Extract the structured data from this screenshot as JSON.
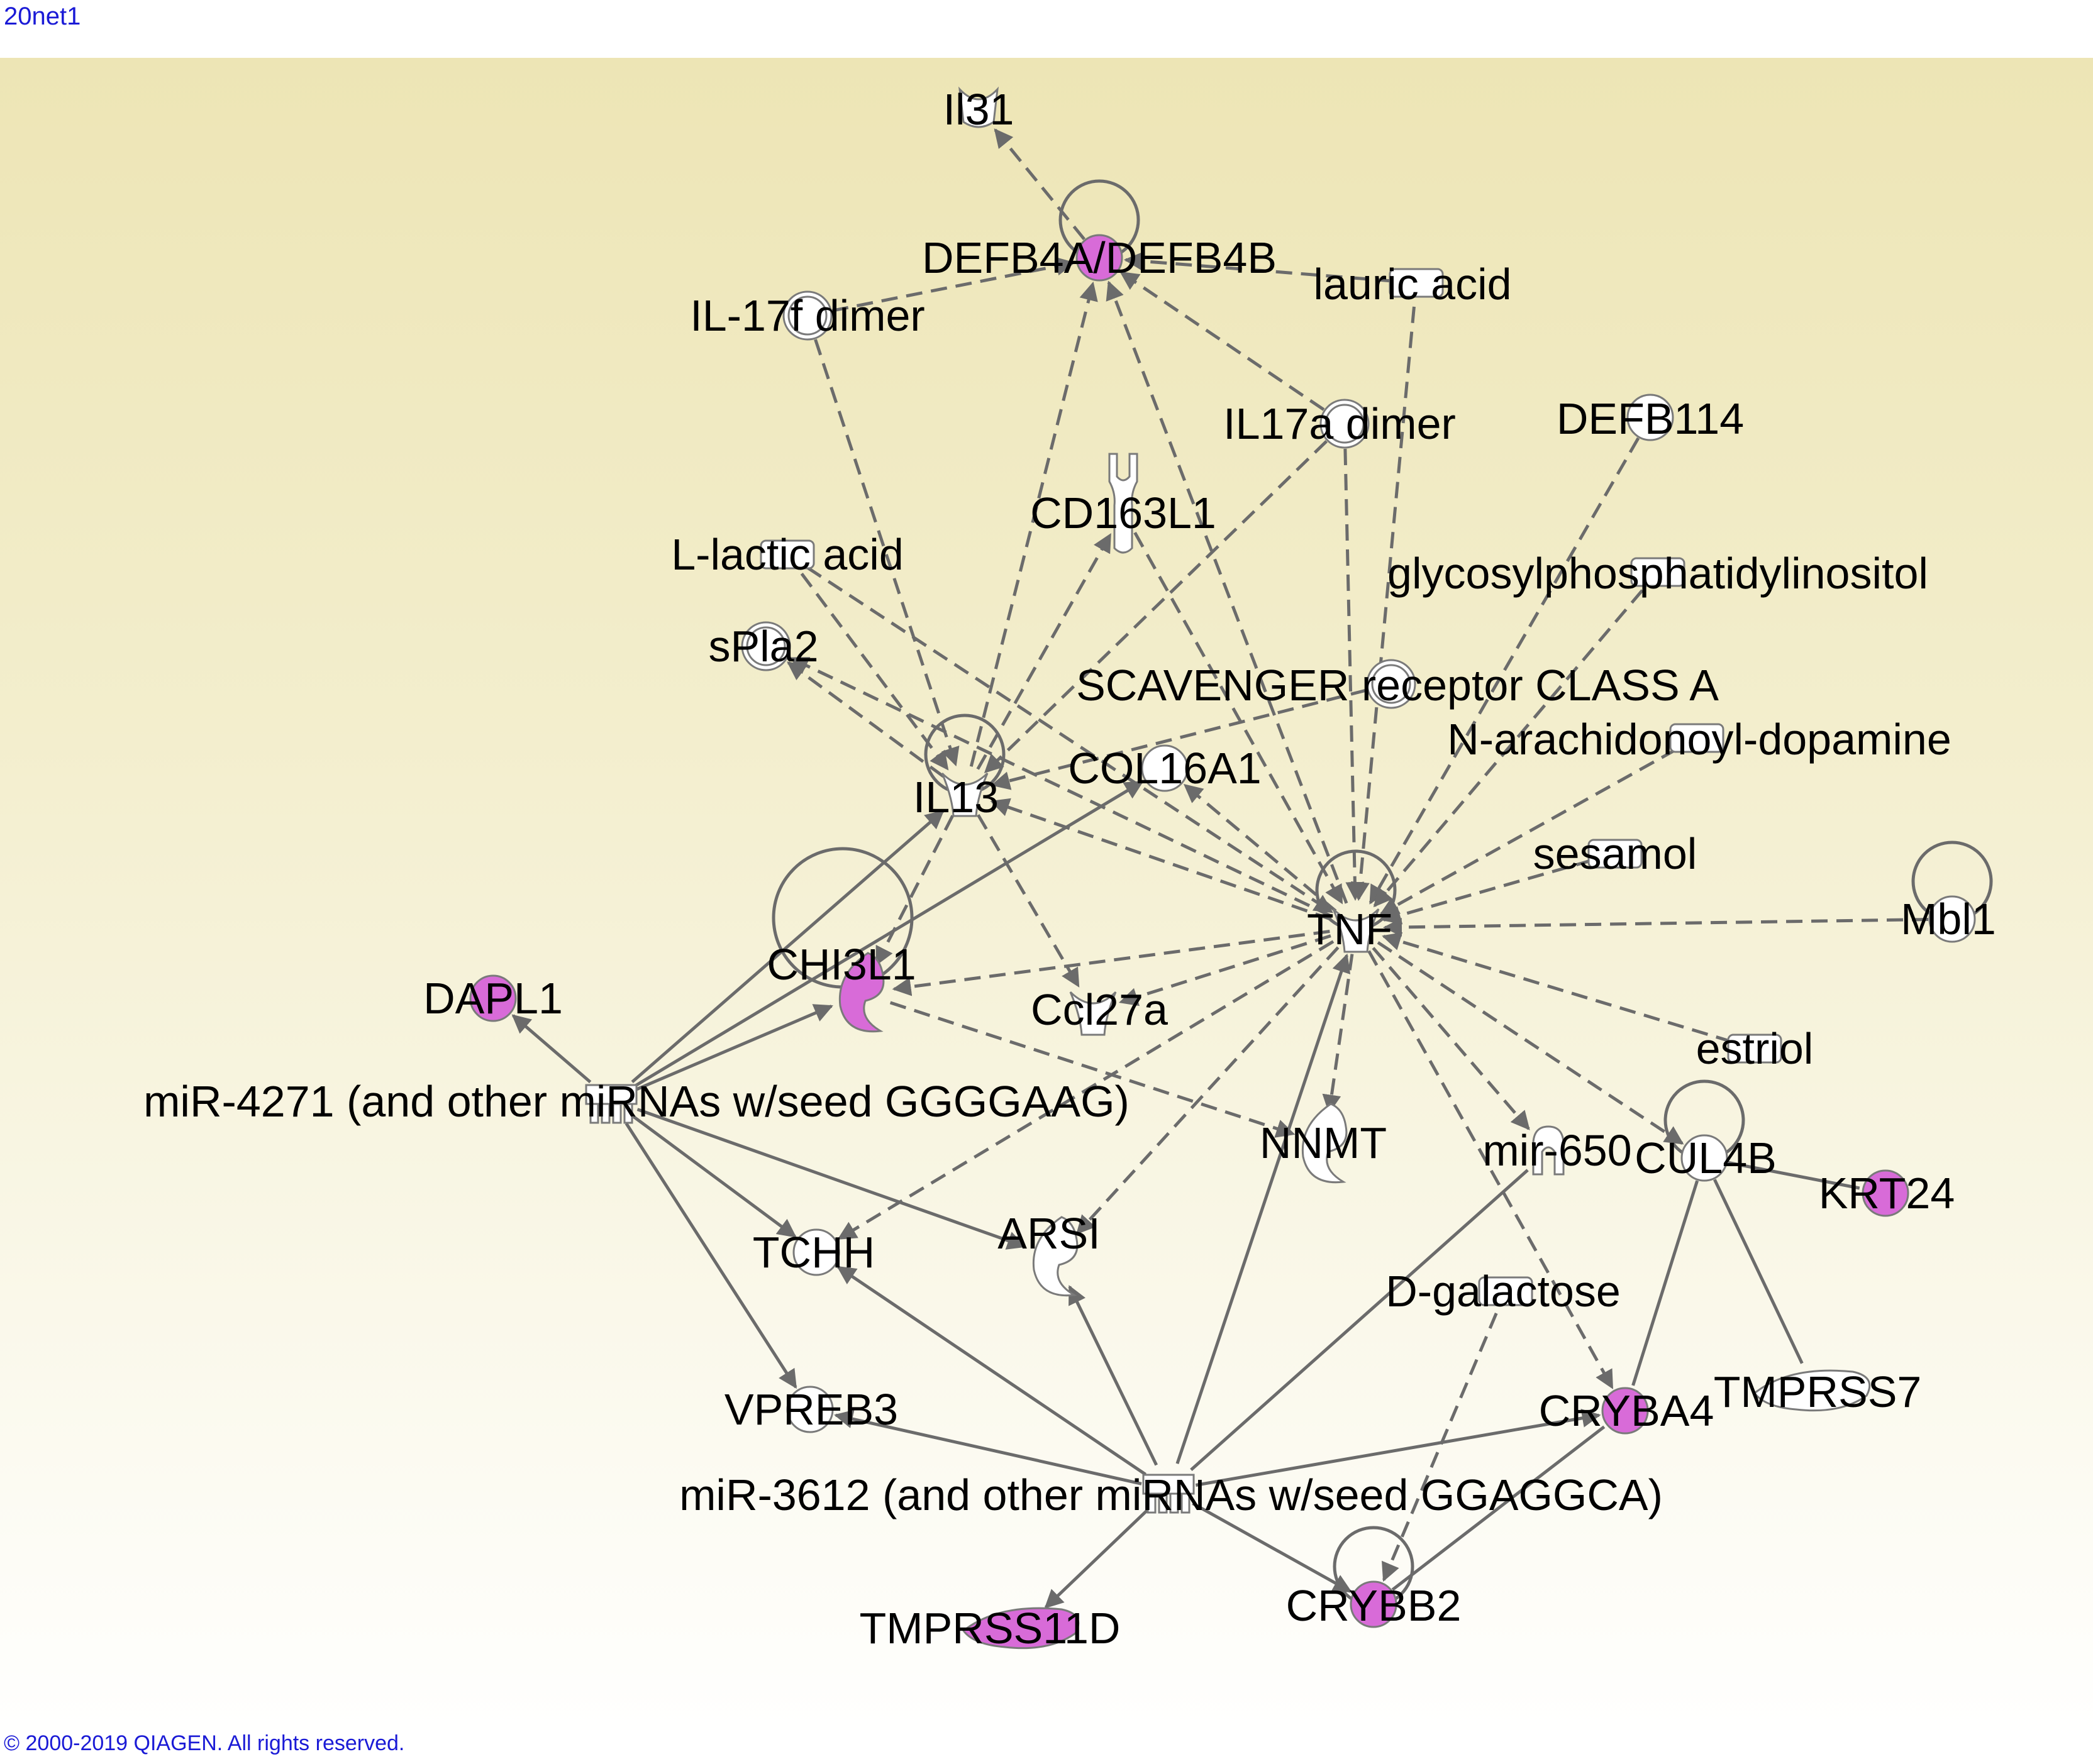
{
  "title": "20net1",
  "copyright": "© 2000-2019 QIAGEN. All rights reserved.",
  "colors": {
    "highlight": "#d86bd8",
    "node": "#ffffff",
    "edge": "#6b6b6b",
    "link": "#1a1ad6"
  },
  "nodes": [
    {
      "id": "il31",
      "label": "Il31",
      "shape": "receptor-icon",
      "highlighted": false
    },
    {
      "id": "defb4",
      "label": "DEFB4A/DEFB4B",
      "shape": "circle-icon",
      "highlighted": true
    },
    {
      "id": "lauric",
      "label": "lauric acid",
      "shape": "chemical-icon",
      "highlighted": false
    },
    {
      "id": "il17f",
      "label": "IL-17f dimer",
      "shape": "complex-icon",
      "highlighted": false
    },
    {
      "id": "il17a",
      "label": "IL17a dimer",
      "shape": "complex-icon",
      "highlighted": false
    },
    {
      "id": "defb114",
      "label": "DEFB114",
      "shape": "circle-icon",
      "highlighted": false
    },
    {
      "id": "cd163l1",
      "label": "CD163L1",
      "shape": "transmembrane-receptor-icon",
      "highlighted": false
    },
    {
      "id": "llactic",
      "label": "L-lactic acid",
      "shape": "chemical-icon",
      "highlighted": false
    },
    {
      "id": "gpi",
      "label": "glycosylphosphatidylinositol",
      "shape": "chemical-icon",
      "highlighted": false
    },
    {
      "id": "spla2",
      "label": "sPla2",
      "shape": "complex-icon",
      "highlighted": false
    },
    {
      "id": "scav",
      "label": "SCAVENGER receptor CLASS A",
      "shape": "complex-icon",
      "highlighted": false
    },
    {
      "id": "nada",
      "label": "N-arachidonoyl-dopamine",
      "shape": "chemical-icon",
      "highlighted": false
    },
    {
      "id": "il13",
      "label": "IL13",
      "shape": "cytokine-icon",
      "highlighted": false
    },
    {
      "id": "col16a1",
      "label": "COL16A1",
      "shape": "circle-icon",
      "highlighted": false
    },
    {
      "id": "sesamol",
      "label": "sesamol",
      "shape": "chemical-icon",
      "highlighted": false
    },
    {
      "id": "mbl1",
      "label": "Mbl1",
      "shape": "circle-icon",
      "highlighted": false
    },
    {
      "id": "tnf",
      "label": "TNF",
      "shape": "cytokine-icon",
      "highlighted": false
    },
    {
      "id": "chi3l1",
      "label": "CHI3L1",
      "shape": "enzyme-icon",
      "highlighted": true
    },
    {
      "id": "ccl27a",
      "label": "Ccl27a",
      "shape": "cytokine-icon",
      "highlighted": false
    },
    {
      "id": "dapl1",
      "label": "DAPL1",
      "shape": "circle-icon",
      "highlighted": true
    },
    {
      "id": "estriol",
      "label": "estriol",
      "shape": "chemical-icon",
      "highlighted": false
    },
    {
      "id": "mir4271",
      "label": "miR-4271 (and other miRNAs w/seed GGGGAAG)",
      "shape": "mirna-icon",
      "highlighted": false
    },
    {
      "id": "nnmt",
      "label": "NNMT",
      "shape": "enzyme-icon",
      "highlighted": false
    },
    {
      "id": "mir650",
      "label": "mir-650",
      "shape": "microrna-icon",
      "highlighted": false
    },
    {
      "id": "cul4b",
      "label": "CUL4B",
      "shape": "circle-icon",
      "highlighted": false
    },
    {
      "id": "krt24",
      "label": "KRT24",
      "shape": "circle-icon",
      "highlighted": true
    },
    {
      "id": "tchh",
      "label": "TCHH",
      "shape": "circle-icon",
      "highlighted": false
    },
    {
      "id": "arsi",
      "label": "ARSI",
      "shape": "enzyme-icon",
      "highlighted": false
    },
    {
      "id": "dgal",
      "label": "D-galactose",
      "shape": "chemical-icon",
      "highlighted": false
    },
    {
      "id": "tmprss7",
      "label": "TMPRSS7",
      "shape": "peptidase-icon",
      "highlighted": false
    },
    {
      "id": "vpreb3",
      "label": "VPREB3",
      "shape": "circle-icon",
      "highlighted": false
    },
    {
      "id": "cryba4",
      "label": "CRYBA4",
      "shape": "circle-icon",
      "highlighted": true
    },
    {
      "id": "mir3612",
      "label": "miR-3612 (and other miRNAs w/seed GGAGGCA)",
      "shape": "mirna-icon",
      "highlighted": false
    },
    {
      "id": "crybb2",
      "label": "CRYBB2",
      "shape": "circle-icon",
      "highlighted": true
    },
    {
      "id": "tmprss11d",
      "label": "TMPRSS11D",
      "shape": "peptidase-icon",
      "highlighted": true
    }
  ],
  "edges": [
    {
      "from": "defb4",
      "to": "il31",
      "style": "dashed",
      "arrow": true
    },
    {
      "from": "defb4",
      "to": "defb4",
      "style": "solid",
      "arrow": false
    },
    {
      "from": "il17f",
      "to": "defb4",
      "style": "dashed",
      "arrow": true
    },
    {
      "from": "lauric",
      "to": "defb4",
      "style": "dashed",
      "arrow": true
    },
    {
      "from": "il17a",
      "to": "defb4",
      "style": "dashed",
      "arrow": true
    },
    {
      "from": "il13",
      "to": "defb4",
      "style": "dashed",
      "arrow": true
    },
    {
      "from": "tnf",
      "to": "defb4",
      "style": "dashed",
      "arrow": true
    },
    {
      "from": "il17f",
      "to": "il13",
      "style": "dashed",
      "arrow": true
    },
    {
      "from": "il17a",
      "to": "il13",
      "style": "dashed",
      "arrow": true
    },
    {
      "from": "il13",
      "to": "cd163l1",
      "style": "dashed",
      "arrow": true
    },
    {
      "from": "llactic",
      "to": "il13",
      "style": "dashed",
      "arrow": true
    },
    {
      "from": "llactic",
      "to": "tnf",
      "style": "dashed",
      "arrow": true
    },
    {
      "from": "il13",
      "to": "spla2",
      "style": "dashed",
      "arrow": true
    },
    {
      "from": "tnf",
      "to": "spla2",
      "style": "dashed",
      "arrow": true
    },
    {
      "from": "il13",
      "to": "il13",
      "style": "solid",
      "arrow": false
    },
    {
      "from": "scav",
      "to": "il13",
      "style": "dashed",
      "arrow": true
    },
    {
      "from": "tnf",
      "to": "il13",
      "style": "dashed",
      "arrow": true
    },
    {
      "from": "il13",
      "to": "chi3l1",
      "style": "dashed",
      "arrow": true
    },
    {
      "from": "il13",
      "to": "ccl27a",
      "style": "dashed",
      "arrow": true
    },
    {
      "from": "tnf",
      "to": "col16a1",
      "style": "dashed",
      "arrow": true
    },
    {
      "from": "cd163l1",
      "to": "tnf",
      "style": "dashed",
      "arrow": true
    },
    {
      "from": "lauric",
      "to": "tnf",
      "style": "dashed",
      "arrow": true
    },
    {
      "from": "il17a",
      "to": "tnf",
      "style": "dashed",
      "arrow": true
    },
    {
      "from": "defb114",
      "to": "tnf",
      "style": "dashed",
      "arrow": true
    },
    {
      "from": "gpi",
      "to": "tnf",
      "style": "dashed",
      "arrow": true
    },
    {
      "from": "nada",
      "to": "tnf",
      "style": "dashed",
      "arrow": true
    },
    {
      "from": "sesamol",
      "to": "tnf",
      "style": "dashed",
      "arrow": true
    },
    {
      "from": "mbl1",
      "to": "tnf",
      "style": "dashed",
      "arrow": true
    },
    {
      "from": "mbl1",
      "to": "mbl1",
      "style": "solid",
      "arrow": false
    },
    {
      "from": "estriol",
      "to": "tnf",
      "style": "dashed",
      "arrow": true
    },
    {
      "from": "tnf",
      "to": "tnf",
      "style": "solid",
      "arrow": false
    },
    {
      "from": "tnf",
      "to": "chi3l1",
      "style": "dashed",
      "arrow": true
    },
    {
      "from": "tnf",
      "to": "ccl27a",
      "style": "dashed",
      "arrow": true
    },
    {
      "from": "tnf",
      "to": "nnmt",
      "style": "dashed",
      "arrow": true
    },
    {
      "from": "tnf",
      "to": "mir650",
      "style": "dashed",
      "arrow": true
    },
    {
      "from": "tnf",
      "to": "cul4b",
      "style": "dashed",
      "arrow": true
    },
    {
      "from": "tnf",
      "to": "cryba4",
      "style": "dashed",
      "arrow": true
    },
    {
      "from": "tnf",
      "to": "arsi",
      "style": "dashed",
      "arrow": true
    },
    {
      "from": "tnf",
      "to": "tchh",
      "style": "dashed",
      "arrow": true
    },
    {
      "from": "chi3l1",
      "to": "chi3l1",
      "style": "solid",
      "arrow": false
    },
    {
      "from": "chi3l1",
      "to": "nnmt",
      "style": "dashed",
      "arrow": true
    },
    {
      "from": "mir4271",
      "to": "dapl1",
      "style": "solid",
      "arrow": true
    },
    {
      "from": "mir4271",
      "to": "il13",
      "style": "solid",
      "arrow": true
    },
    {
      "from": "mir4271",
      "to": "chi3l1",
      "style": "solid",
      "arrow": true
    },
    {
      "from": "mir4271",
      "to": "col16a1",
      "style": "solid",
      "arrow": true
    },
    {
      "from": "mir4271",
      "to": "tchh",
      "style": "solid",
      "arrow": true
    },
    {
      "from": "mir4271",
      "to": "arsi",
      "style": "solid",
      "arrow": true
    },
    {
      "from": "mir4271",
      "to": "vpreb3",
      "style": "solid",
      "arrow": true
    },
    {
      "from": "cul4b",
      "to": "cul4b",
      "style": "solid",
      "arrow": false
    },
    {
      "from": "cul4b",
      "to": "krt24",
      "style": "solid",
      "arrow": false
    },
    {
      "from": "cul4b",
      "to": "tmprss7",
      "style": "solid",
      "arrow": false
    },
    {
      "from": "cul4b",
      "to": "cryba4",
      "style": "solid",
      "arrow": false
    },
    {
      "from": "dgal",
      "to": "crybb2",
      "style": "dashed",
      "arrow": true
    },
    {
      "from": "mir650",
      "to": "mir3612",
      "style": "solid",
      "arrow": false
    },
    {
      "from": "mir3612",
      "to": "tnf",
      "style": "solid",
      "arrow": true
    },
    {
      "from": "mir3612",
      "to": "tchh",
      "style": "solid",
      "arrow": true
    },
    {
      "from": "mir3612",
      "to": "arsi",
      "style": "solid",
      "arrow": true
    },
    {
      "from": "mir3612",
      "to": "vpreb3",
      "style": "solid",
      "arrow": true
    },
    {
      "from": "mir3612",
      "to": "cryba4",
      "style": "solid",
      "arrow": true
    },
    {
      "from": "mir3612",
      "to": "crybb2",
      "style": "solid",
      "arrow": true
    },
    {
      "from": "mir3612",
      "to": "tmprss11d",
      "style": "solid",
      "arrow": true
    },
    {
      "from": "crybb2",
      "to": "crybb2",
      "style": "solid",
      "arrow": false
    },
    {
      "from": "crybb2",
      "to": "cryba4",
      "style": "solid",
      "arrow": false
    }
  ]
}
